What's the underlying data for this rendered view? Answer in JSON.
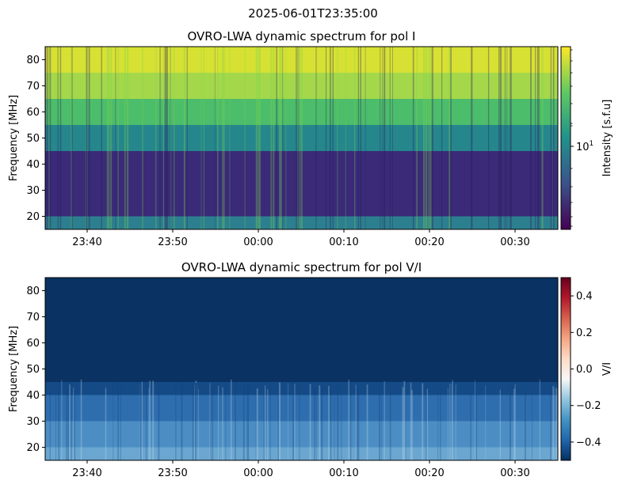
{
  "figure": {
    "suptitle": "2025-06-01T23:35:00"
  },
  "chart_data": [
    {
      "type": "heatmap",
      "title": "OVRO-LWA dynamic spectrum for pol I",
      "ylabel": "Frequency [MHz]",
      "xlabel": "",
      "x_ticks": [
        "23:40",
        "23:50",
        "00:00",
        "00:10",
        "00:20",
        "00:30"
      ],
      "y_ticks": [
        20,
        30,
        40,
        50,
        60,
        70,
        80
      ],
      "ylim": [
        15,
        85
      ],
      "colormap": "viridis",
      "colorbar": {
        "label": "Intensity [s.f.u]",
        "scale": "log",
        "tick_base": "10",
        "tick_exp": "1",
        "colors": [
          "#440154",
          "#3b528b",
          "#21918c",
          "#5ec962",
          "#fde725"
        ]
      },
      "bands": [
        {
          "from": 15,
          "to": 20,
          "color": "#2c7f8e"
        },
        {
          "from": 20,
          "to": 45,
          "color": "#3a2a78"
        },
        {
          "from": 45,
          "to": 55,
          "color": "#25868c"
        },
        {
          "from": 55,
          "to": 65,
          "color": "#4cbd6a"
        },
        {
          "from": 65,
          "to": 75,
          "color": "#a4d84a"
        },
        {
          "from": 75,
          "to": 85,
          "color": "#d6e133"
        }
      ]
    },
    {
      "type": "heatmap",
      "title": "OVRO-LWA dynamic spectrum for pol V/I",
      "ylabel": "Frequency [MHz]",
      "xlabel": "",
      "x_ticks": [
        "23:40",
        "23:50",
        "00:00",
        "00:10",
        "00:20",
        "00:30"
      ],
      "y_ticks": [
        20,
        30,
        40,
        50,
        60,
        70,
        80
      ],
      "ylim": [
        15,
        85
      ],
      "colormap": "RdBu_r",
      "colorbar": {
        "label": "V/I",
        "scale": "linear",
        "range": [
          -0.5,
          0.5
        ],
        "ticks": [
          "0.4",
          "0.2",
          "0.0",
          "−0.2",
          "−0.4"
        ],
        "tick_values": [
          0.4,
          0.2,
          0.0,
          -0.2,
          -0.4
        ],
        "colors": [
          "#053061",
          "#2166ac",
          "#4393c3",
          "#92c5de",
          "#f7f7f7",
          "#fddbc7",
          "#f4a582",
          "#d6604d",
          "#b2182b",
          "#67001f"
        ]
      },
      "bands": [
        {
          "from": 15,
          "to": 20,
          "color": "#6aa6d0"
        },
        {
          "from": 20,
          "to": 30,
          "color": "#4c8ec4"
        },
        {
          "from": 30,
          "to": 40,
          "color": "#2f6eae"
        },
        {
          "from": 40,
          "to": 45,
          "color": "#144b87"
        },
        {
          "from": 45,
          "to": 85,
          "color": "#0a3263"
        }
      ]
    }
  ]
}
